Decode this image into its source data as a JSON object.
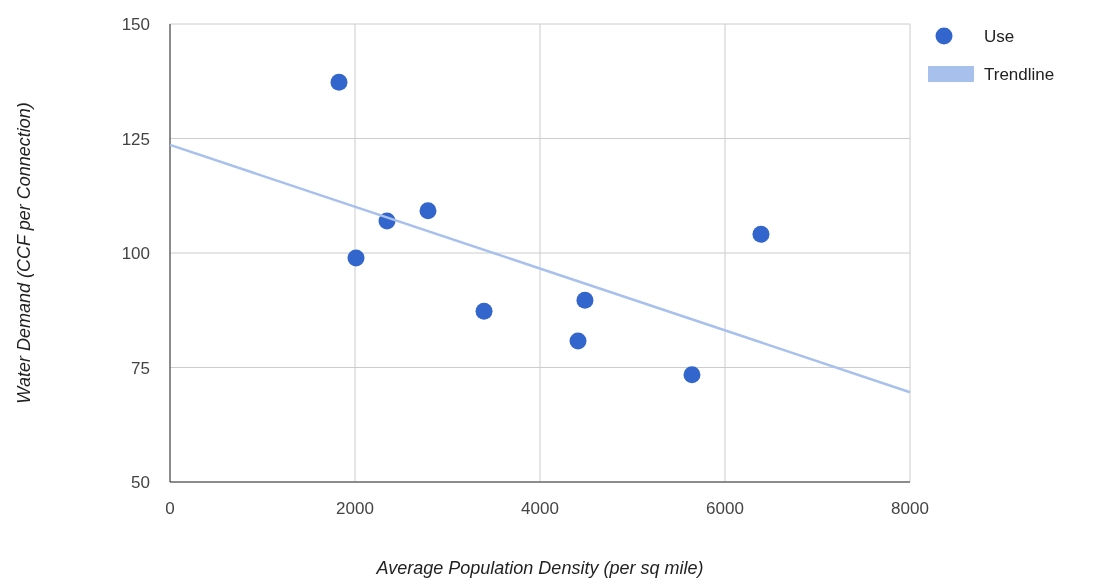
{
  "chart_data": {
    "type": "scatter",
    "xlabel": "Average Population Density (per sq mile)",
    "ylabel": "Water Demand (CCF per Connection)",
    "xlim": [
      0,
      8000
    ],
    "xticks": [
      0,
      2000,
      4000,
      6000,
      8000
    ],
    "ylim": [
      50,
      150
    ],
    "yticks": [
      50,
      75,
      100,
      125,
      150
    ],
    "grid": true,
    "legend": "top right",
    "series": [
      {
        "name": "Use",
        "marker": "circle",
        "color": "#3366cc",
        "x": [
          1827,
          2011,
          2346,
          2789,
          3395,
          4411,
          4486,
          5643,
          6389
        ],
        "values": [
          137.3,
          98.9,
          107,
          109.2,
          87.3,
          80.8,
          89.7,
          73.4,
          104.1
        ]
      },
      {
        "name": "Trendline",
        "type": "line",
        "color": "#a8c0ec",
        "x": [
          0,
          8000
        ],
        "values": [
          123.6,
          69.6
        ]
      }
    ]
  }
}
